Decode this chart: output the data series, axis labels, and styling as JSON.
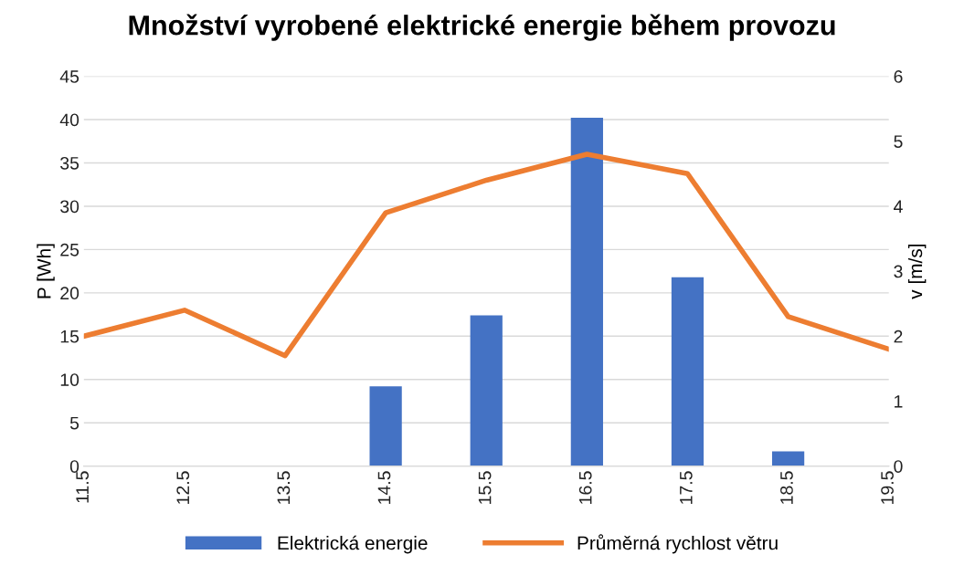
{
  "chart_data": {
    "type": "bar",
    "title": "Množství vyrobené elektrické energie během provozu",
    "ylabel": "P [Wh]",
    "y2label": "v [m/s]",
    "categories": [
      "11.5",
      "12.5",
      "13.5",
      "14.5",
      "15.5",
      "16.5",
      "17.5",
      "18.5",
      "19.5"
    ],
    "series": [
      {
        "name": "Elektrická energie",
        "color": "#4472c4",
        "values": [
          0,
          0,
          0,
          9.2,
          17.4,
          40.2,
          21.8,
          1.7,
          0
        ]
      },
      {
        "name": "Průměrná rychlost větru",
        "color": "#ed7d31",
        "type": "line",
        "axis": "y2",
        "values": [
          2.0,
          2.4,
          1.7,
          3.9,
          4.4,
          4.8,
          4.5,
          2.3,
          1.8
        ]
      }
    ],
    "ylim": [
      0,
      45
    ],
    "yticks": [
      0,
      5,
      10,
      15,
      20,
      25,
      30,
      35,
      40,
      45
    ],
    "y2lim": [
      0,
      6
    ],
    "y2ticks": [
      0,
      1,
      2,
      3,
      4,
      5,
      6
    ],
    "grid": "y",
    "legend": "bottom",
    "marker": "none",
    "line_style": "solid"
  }
}
